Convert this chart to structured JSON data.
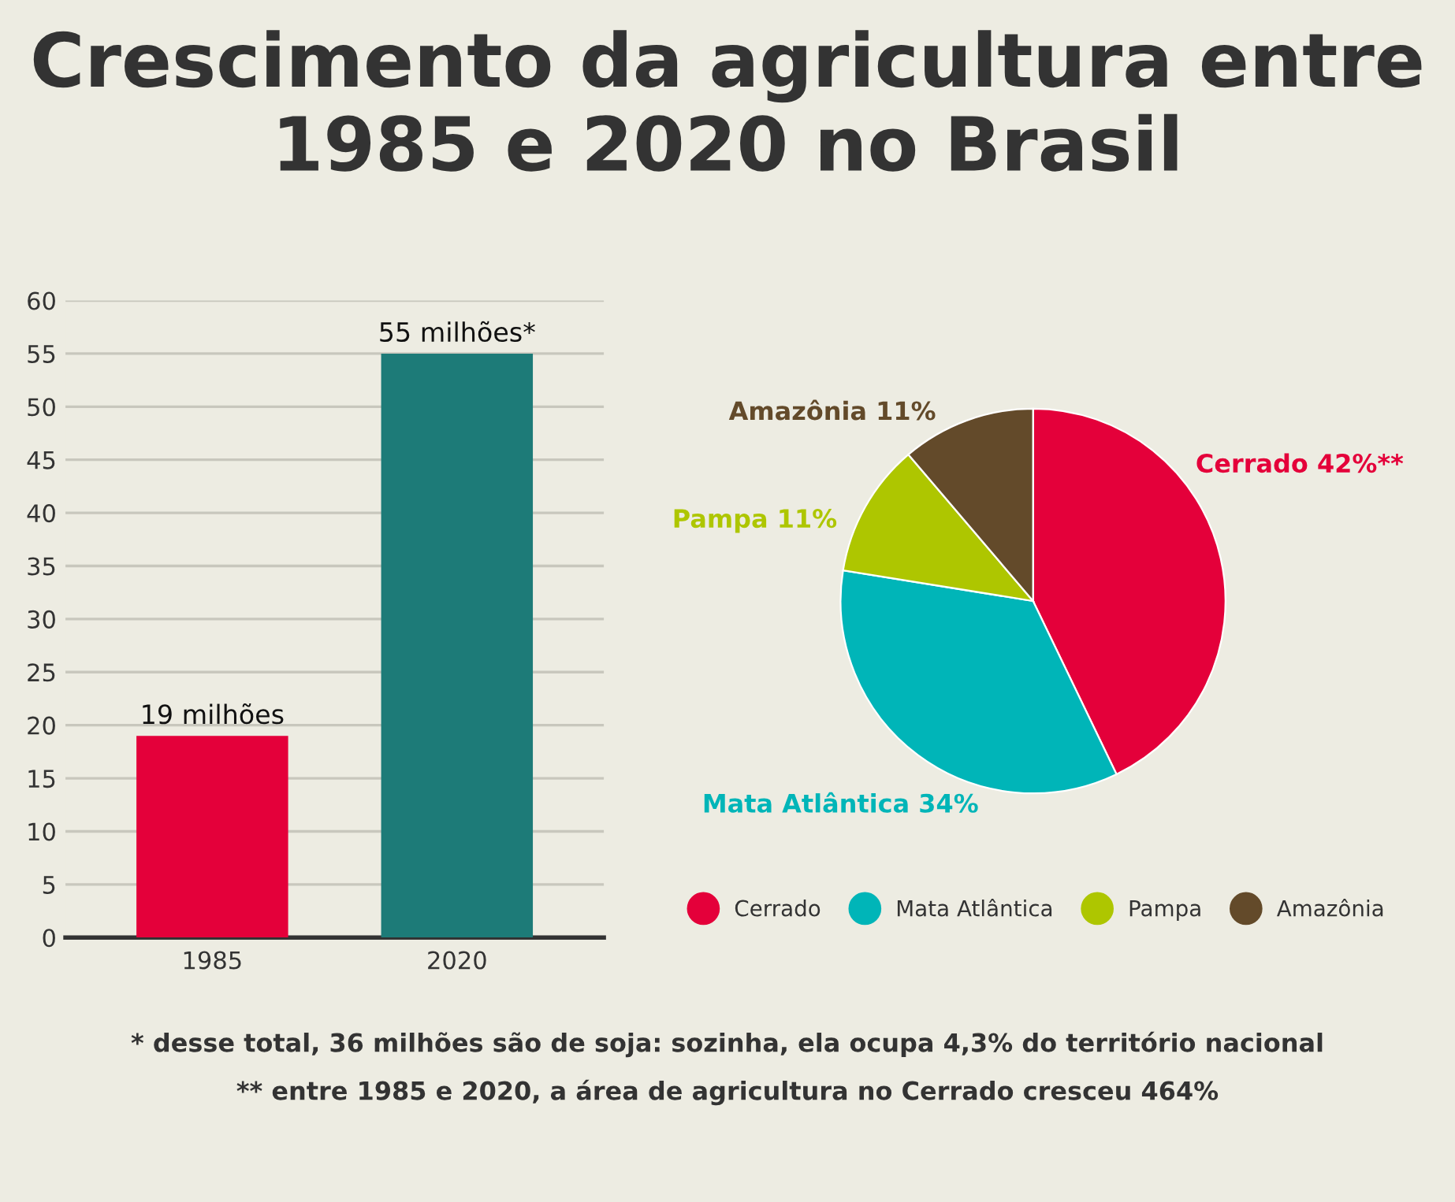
{
  "chart_data": [
    {
      "type": "bar",
      "title": "Crescimento da agricultura entre 1985 e 2020 no Brasil",
      "categories": [
        "1985",
        "2020"
      ],
      "values": [
        19,
        55
      ],
      "colors": [
        "#e4003a",
        "#1d7b78"
      ],
      "value_labels": [
        "19 milhões",
        "55 milhões*"
      ],
      "ylim": [
        0,
        60
      ],
      "yticks": [
        0,
        5,
        10,
        15,
        20,
        25,
        30,
        35,
        40,
        45,
        50,
        55,
        60
      ],
      "grid": "y",
      "annotations": [
        "* desse total, 36 milhões são de soja: sozinha, ela ocupa 4,3% do território nacional",
        "** entre 1985 e 2020, a área de agricultura no Cerrado cresceu 464%"
      ]
    },
    {
      "type": "pie",
      "categories": [
        "Cerrado",
        "Mata Atlântica",
        "Pampa",
        "Amazônia"
      ],
      "values": [
        42,
        34,
        11,
        11
      ],
      "colors": [
        "#e4003a",
        "#00b5b8",
        "#aec600",
        "#634a2a"
      ],
      "value_labels": [
        "Cerrado 42%**",
        "Mata Atlântica 34%",
        "Pampa 11%",
        "Amazônia 11%"
      ],
      "legend": "bottom"
    }
  ]
}
